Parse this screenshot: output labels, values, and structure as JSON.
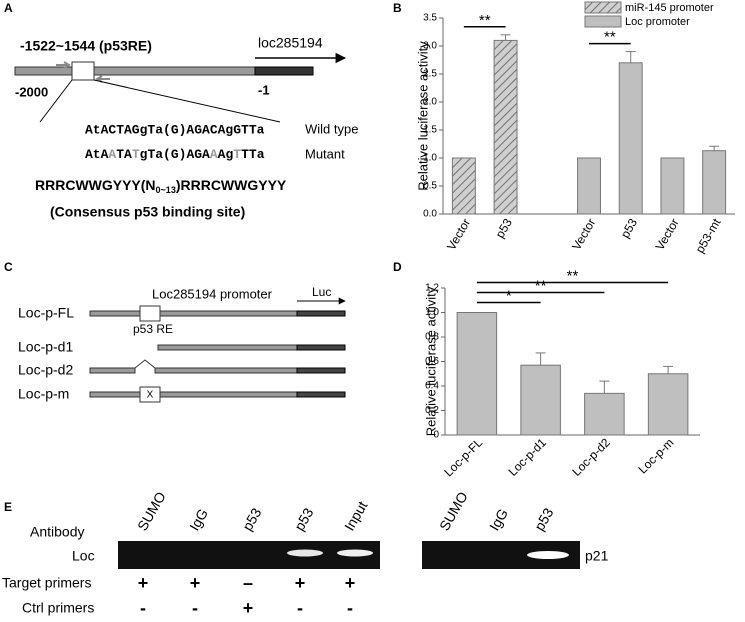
{
  "panel_labels": [
    "A",
    "B",
    "C",
    "D",
    "E"
  ],
  "panel_a": {
    "site": "-1522~1544 (p53RE)",
    "gene": "loc285194",
    "start": "-2000",
    "end": "-1",
    "wild_type": {
      "sequence": "AtACTAGgTa(G)AGACAgGTTa",
      "label": "Wild type"
    },
    "mutant": {
      "segments": [
        {
          "text": "AtA",
          "mutated": false
        },
        {
          "text": "A",
          "mutated": true
        },
        {
          "text": "TA",
          "mutated": false
        },
        {
          "text": "T",
          "mutated": true
        },
        {
          "text": "gTa(G)AGA",
          "mutated": false
        },
        {
          "text": "A",
          "mutated": true
        },
        {
          "text": "Ag",
          "mutated": false
        },
        {
          "text": "T",
          "mutated": true
        },
        {
          "text": "TTa",
          "mutated": false
        }
      ],
      "label": "Mutant"
    },
    "consensus": {
      "segments": [
        {
          "text": "RRRCWWGYYY(N",
          "sub": false
        },
        {
          "text": "0~13",
          "sub": true
        },
        {
          "text": ")RRRCWWGYYY",
          "sub": false
        }
      ],
      "caption": "(Consensus p53 binding site)"
    }
  },
  "chart_data": [
    {
      "type": "bar",
      "ylabel": "Relative luciferase activity",
      "categories": [
        "Vector",
        "p53",
        null,
        "Vector",
        "p53",
        "Vector",
        "p53-mt"
      ],
      "series": [
        {
          "name": "miR-145 promoter",
          "color": "#b8b8b8",
          "pattern": "hatch",
          "values": [
            1.0,
            3.1,
            null,
            null,
            null,
            null,
            null
          ],
          "errors": [
            0,
            0.1,
            null,
            null,
            null,
            null,
            null
          ]
        },
        {
          "name": "Loc promoter",
          "color": "#bfbfbf",
          "pattern": "solid",
          "values": [
            null,
            null,
            null,
            1.0,
            2.7,
            1.0,
            1.13
          ],
          "errors": [
            null,
            null,
            null,
            0,
            0.2,
            0,
            0.08
          ]
        }
      ],
      "ylim": [
        0,
        3.5
      ],
      "yticks": [
        {
          "value": 0,
          "label": "0.0"
        },
        0.5,
        {
          "value": 1,
          "label": "1.0"
        },
        1.5,
        {
          "value": 2,
          "label": "2.0"
        },
        2.5,
        {
          "value": 3,
          "label": "3.0"
        },
        3.5
      ],
      "legend": "upper right",
      "significance": [
        {
          "label": "**",
          "from": 0,
          "to": 1
        },
        {
          "label": "**",
          "from": 3,
          "to": 4
        }
      ]
    },
    {
      "type": "bar",
      "ylabel": "Relative luciferase activity",
      "categories": [
        "Loc-p-FL",
        "Loc-p-d1",
        "Loc-p-d2",
        "Loc-p-m"
      ],
      "values": [
        1.0,
        0.57,
        0.34,
        0.5
      ],
      "errors": [
        0,
        0.1,
        0.1,
        0.06
      ],
      "color": "#bfbfbf",
      "ylim": [
        0,
        1.2
      ],
      "yticks": [
        0,
        0.2,
        0.4,
        0.6,
        0.8,
        {
          "value": 1,
          "label": "1.0"
        },
        1.2
      ],
      "significance": [
        {
          "label": "*",
          "from": 0,
          "to": 1
        },
        {
          "label": "**",
          "from": 0,
          "to": 2
        },
        {
          "label": "**",
          "from": 0,
          "to": 3
        }
      ]
    }
  ],
  "panel_c": {
    "title": "Loc285194 promoter",
    "reporter": "Luc",
    "site": "p53 RE",
    "mutation_mark": "X",
    "constructs": [
      "Loc-p-FL",
      "Loc-p-d1",
      "Loc-p-d2",
      "Loc-p-m"
    ]
  },
  "panel_e": {
    "antibody_label": "Antibody",
    "gels": [
      {
        "gene": "Loc",
        "lanes": [
          "SUMO",
          "IgG",
          "p53",
          "p53",
          "Input"
        ]
      },
      {
        "gene": "p21",
        "lanes": [
          "SUMO",
          "IgG",
          "p53"
        ]
      }
    ],
    "primer_rows": [
      {
        "label": "Target primers",
        "signs": [
          "+",
          "+",
          "–",
          "+",
          "+"
        ]
      },
      {
        "label": "Ctrl primers",
        "signs": [
          "-",
          "-",
          "+",
          "-",
          "-"
        ]
      }
    ]
  }
}
